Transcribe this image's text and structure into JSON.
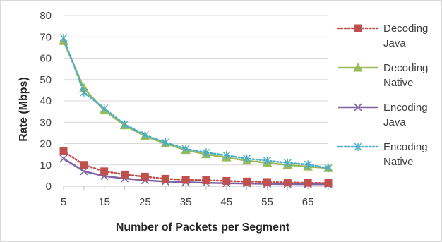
{
  "chart_data": {
    "type": "line",
    "xlabel": "Number of Packets per Segment",
    "ylabel": "Rate (Mbps)",
    "ylim": [
      0,
      80
    ],
    "yticks": [
      0,
      10,
      20,
      30,
      40,
      50,
      60,
      70,
      80
    ],
    "xticks": [
      5,
      15,
      25,
      35,
      45,
      55,
      65
    ],
    "x": [
      5,
      10,
      15,
      20,
      25,
      30,
      35,
      40,
      45,
      50,
      55,
      60,
      65,
      70
    ],
    "grid": "horizontal",
    "legend_position": "right",
    "series": [
      {
        "name": "Decoding Java",
        "legend_lines": [
          "Decoding",
          "Java"
        ],
        "color": "#c0504d",
        "line_style": "dotted",
        "marker": "square",
        "values": [
          16.5,
          10,
          7,
          5.5,
          4.5,
          3.5,
          3,
          2.8,
          2.5,
          2.2,
          2,
          1.8,
          1.6,
          1.5
        ]
      },
      {
        "name": "Decoding Native",
        "legend_lines": [
          "Decoding",
          "Native"
        ],
        "color": "#9bbb59",
        "line_style": "solid",
        "marker": "triangle",
        "values": [
          68,
          46,
          35.5,
          28.5,
          23.5,
          20,
          17,
          15,
          13.5,
          12,
          11,
          10,
          9.2,
          8.5
        ]
      },
      {
        "name": "Encoding Java",
        "legend_lines": [
          "Encoding",
          "Java"
        ],
        "color": "#8064a2",
        "line_style": "solid",
        "marker": "x",
        "values": [
          13,
          7,
          4.8,
          3.6,
          2.8,
          2.2,
          1.9,
          1.6,
          1.4,
          1.3,
          1.1,
          1,
          0.95,
          0.9
        ]
      },
      {
        "name": "Encoding Native",
        "legend_lines": [
          "Encoding",
          "Native"
        ],
        "color": "#4bacc6",
        "line_style": "dotted",
        "marker": "asterisk",
        "values": [
          69.5,
          44,
          36.5,
          29,
          24,
          20.5,
          17.5,
          15.8,
          14.5,
          13,
          12,
          11,
          10.2,
          8.5
        ]
      }
    ]
  }
}
